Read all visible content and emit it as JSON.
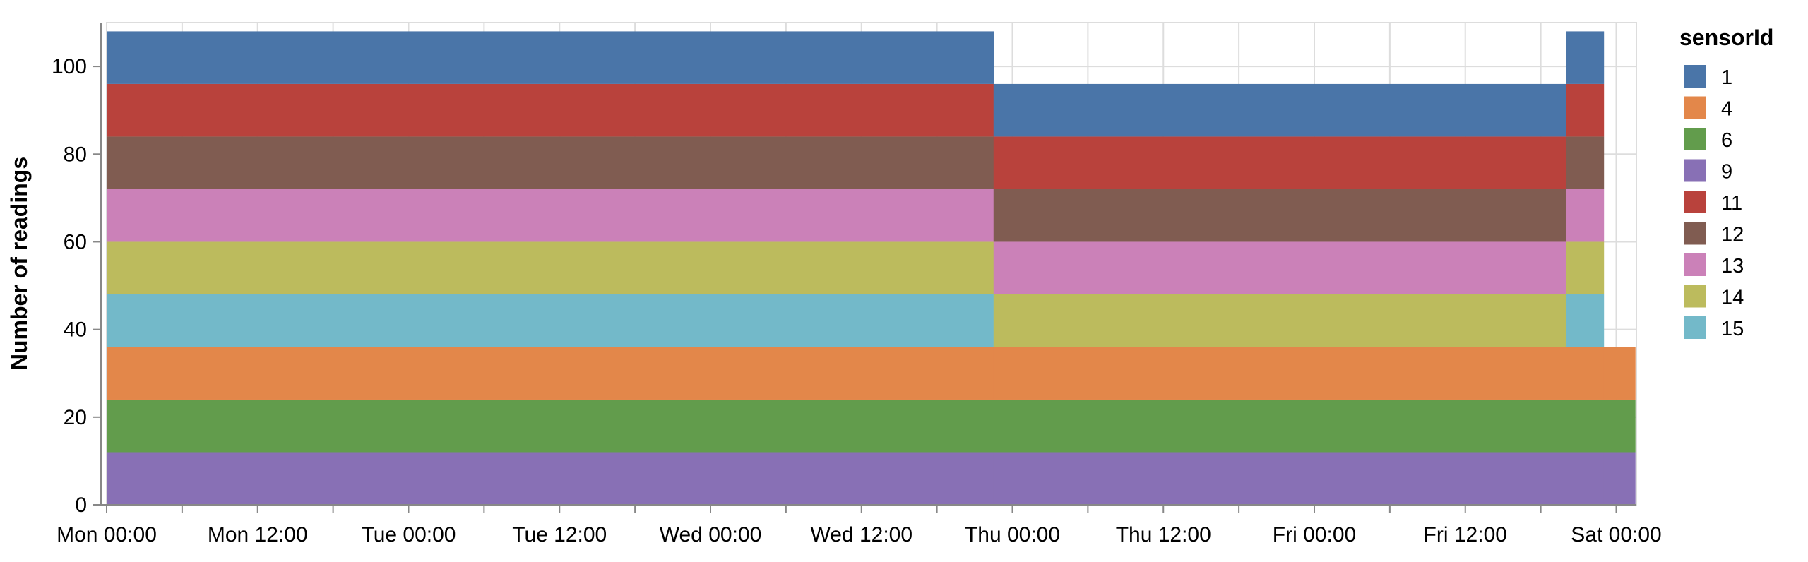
{
  "chart_data": {
    "type": "area",
    "stacked": true,
    "step": true,
    "ylabel": "Number of readings",
    "xlabel": "",
    "ylim": [
      0,
      110
    ],
    "yticks": [
      "0",
      "20",
      "40",
      "60",
      "80",
      "100"
    ],
    "xlim_hours": [
      0,
      121.6
    ],
    "xticks": [
      {
        "label": "Mon 00:00",
        "hour": 0
      },
      {
        "label": "Mon 12:00",
        "hour": 12
      },
      {
        "label": "Tue 00:00",
        "hour": 24
      },
      {
        "label": "Tue 12:00",
        "hour": 36
      },
      {
        "label": "Wed 00:00",
        "hour": 48
      },
      {
        "label": "Wed 12:00",
        "hour": 60
      },
      {
        "label": "Thu 00:00",
        "hour": 72
      },
      {
        "label": "Thu 12:00",
        "hour": 84
      },
      {
        "label": "Fri 00:00",
        "hour": 96
      },
      {
        "label": "Fri 12:00",
        "hour": 108
      },
      {
        "label": "Sat 00:00",
        "hour": 120
      }
    ],
    "grid": true,
    "legend": {
      "title": "sensorId",
      "placement": "right"
    },
    "series": [
      {
        "name": "9",
        "color": "#8870b5",
        "points": [
          [
            0,
            12
          ],
          [
            120.0,
            12
          ],
          [
            121.5,
            12
          ]
        ]
      },
      {
        "name": "6",
        "color": "#629c4c",
        "points": [
          [
            0,
            12
          ],
          [
            120.0,
            12
          ],
          [
            121.5,
            0
          ]
        ]
      },
      {
        "name": "4",
        "color": "#e3874a",
        "points": [
          [
            0,
            12
          ],
          [
            120.0,
            12
          ],
          [
            121.5,
            0
          ]
        ]
      },
      {
        "name": "15",
        "color": "#73b9c9",
        "points": [
          [
            0,
            12
          ],
          [
            70.5,
            0
          ],
          [
            116.0,
            12
          ],
          [
            119.0,
            0
          ]
        ]
      },
      {
        "name": "14",
        "color": "#bcbb5d",
        "points": [
          [
            0,
            12
          ],
          [
            70.5,
            12
          ],
          [
            116.0,
            12
          ],
          [
            119.0,
            0
          ]
        ]
      },
      {
        "name": "13",
        "color": "#cb81b8",
        "points": [
          [
            0,
            12
          ],
          [
            70.5,
            12
          ],
          [
            116.0,
            12
          ],
          [
            119.0,
            0
          ]
        ]
      },
      {
        "name": "12",
        "color": "#805c51",
        "points": [
          [
            0,
            12
          ],
          [
            70.5,
            12
          ],
          [
            116.0,
            12
          ],
          [
            119.0,
            0
          ]
        ]
      },
      {
        "name": "11",
        "color": "#b9423c",
        "points": [
          [
            0,
            12
          ],
          [
            70.5,
            12
          ],
          [
            116.0,
            12
          ],
          [
            119.0,
            0
          ]
        ]
      },
      {
        "name": "1",
        "color": "#4a75a8",
        "points": [
          [
            0,
            12
          ],
          [
            71.5,
            12
          ],
          [
            116.0,
            12
          ],
          [
            119.0,
            0
          ]
        ]
      }
    ],
    "legend_order": [
      "1",
      "4",
      "6",
      "9",
      "11",
      "12",
      "13",
      "14",
      "15"
    ]
  }
}
